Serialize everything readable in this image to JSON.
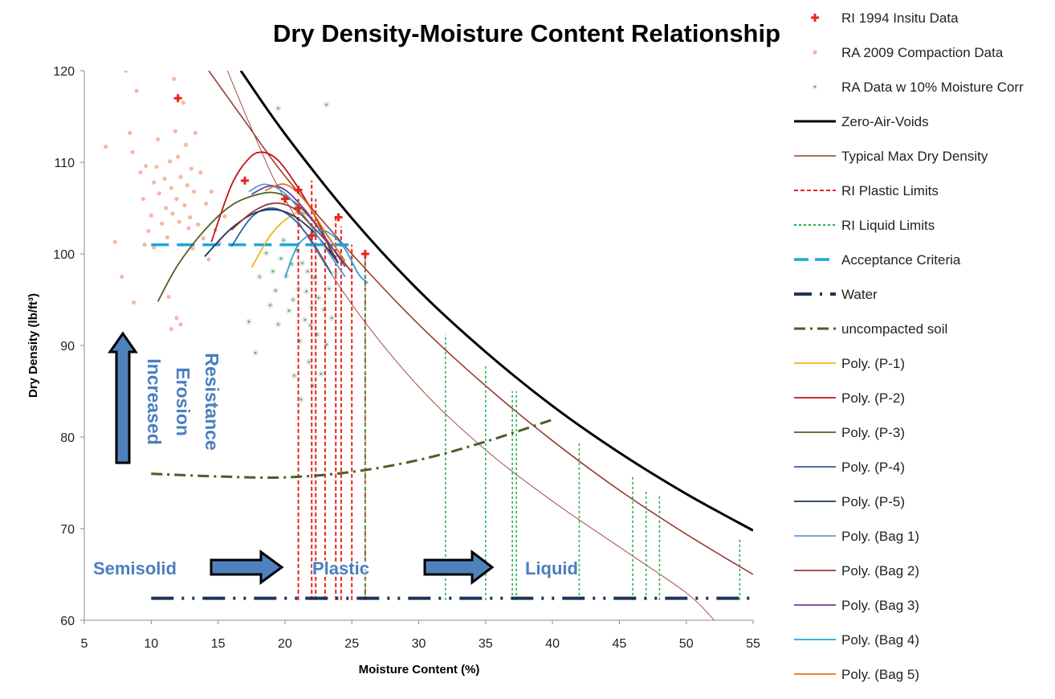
{
  "chart_data": {
    "type": "scatter",
    "title": "Dry Density-Moisture Content Relationship",
    "xlabel": "Moisture Content (%)",
    "ylabel": "Dry Density (lb/ft³)",
    "xlim": [
      5,
      55
    ],
    "ylim": [
      60,
      120
    ],
    "x_ticks": [
      "5",
      "10",
      "15",
      "20",
      "25",
      "30",
      "35",
      "40",
      "45",
      "50",
      "55"
    ],
    "y_ticks": [
      "60",
      "70",
      "80",
      "90",
      "100",
      "110",
      "120"
    ],
    "grid": false,
    "legend_position": "right",
    "annotations": {
      "erosion": [
        "Increased",
        "Erosion",
        "Resistance"
      ],
      "semisolid": "Semisolid",
      "plastic": "Plastic",
      "liquid": "Liquid"
    },
    "colors": {
      "insitu": "#e8231c",
      "compaction": "#f4b9a0",
      "moisture_corr": "#5f9c7a",
      "zav": "#000000",
      "typical": "#9a3b32",
      "plastic_limits": "#e8231c",
      "liquid_limits": "#22b24c",
      "acceptance": "#1ba6e0",
      "water": "#1c3557",
      "uncompacted": "#4c5e2a",
      "arrow_fill": "#4f81bd",
      "annotation_text": "#4a7ec0"
    },
    "series": [
      {
        "name": "RI 1994 Insitu Data",
        "kind": "scatter",
        "marker": "plus",
        "color": "#e8231c",
        "points": [
          [
            12,
            117
          ],
          [
            17,
            108
          ],
          [
            20,
            106
          ],
          [
            21,
            107
          ],
          [
            21,
            105
          ],
          [
            22,
            102
          ],
          [
            24,
            104
          ],
          [
            26,
            100
          ]
        ]
      },
      {
        "name": "RA 2009 Compaction Data",
        "kind": "scatter",
        "marker": "dot",
        "color": "#f4b9a0",
        "points": [
          [
            6.6,
            111.7
          ],
          [
            7.3,
            101.3
          ],
          [
            7.8,
            97.5
          ],
          [
            8.1,
            120.0
          ],
          [
            8.4,
            113.2
          ],
          [
            8.6,
            111.1
          ],
          [
            8.7,
            94.7
          ],
          [
            8.9,
            117.8
          ],
          [
            9.2,
            108.9
          ],
          [
            9.4,
            106.0
          ],
          [
            9.6,
            109.6
          ],
          [
            9.8,
            102.5
          ],
          [
            10.0,
            104.2
          ],
          [
            10.2,
            107.8
          ],
          [
            10.4,
            109.5
          ],
          [
            10.5,
            112.5
          ],
          [
            10.6,
            106.6
          ],
          [
            10.8,
            103.3
          ],
          [
            11.0,
            108.2
          ],
          [
            11.1,
            105.0
          ],
          [
            11.2,
            101.8
          ],
          [
            11.4,
            110.1
          ],
          [
            11.5,
            107.2
          ],
          [
            11.6,
            104.4
          ],
          [
            11.7,
            119.1
          ],
          [
            11.8,
            113.4
          ],
          [
            11.9,
            106.0
          ],
          [
            12.0,
            110.6
          ],
          [
            12.1,
            103.5
          ],
          [
            12.2,
            108.4
          ],
          [
            12.3,
            101.0
          ],
          [
            12.4,
            116.5
          ],
          [
            12.5,
            105.3
          ],
          [
            12.6,
            111.9
          ],
          [
            12.7,
            107.5
          ],
          [
            12.8,
            102.8
          ],
          [
            12.9,
            104.0
          ],
          [
            13.0,
            109.3
          ],
          [
            13.1,
            100.6
          ],
          [
            13.2,
            106.8
          ],
          [
            13.3,
            113.2
          ],
          [
            13.5,
            103.2
          ],
          [
            13.7,
            108.9
          ],
          [
            13.9,
            101.7
          ],
          [
            14.1,
            105.5
          ],
          [
            14.3,
            99.4
          ],
          [
            14.5,
            106.8
          ],
          [
            14.8,
            102.6
          ],
          [
            15.1,
            101.2
          ],
          [
            15.5,
            104.1
          ],
          [
            11.5,
            91.8
          ],
          [
            11.9,
            93.0
          ],
          [
            12.2,
            92.3
          ],
          [
            11.3,
            95.3
          ],
          [
            9.5,
            101.0
          ],
          [
            10.2,
            100.7
          ]
        ]
      },
      {
        "name": "RA Data w 10% Moisture Corr",
        "kind": "scatter",
        "marker": "ring-dot",
        "color": "#5f9c7a",
        "points": [
          [
            17.3,
            92.6
          ],
          [
            17.8,
            89.2
          ],
          [
            18.1,
            97.5
          ],
          [
            18.6,
            100.1
          ],
          [
            18.9,
            94.4
          ],
          [
            19.1,
            98.1
          ],
          [
            19.3,
            96.0
          ],
          [
            19.5,
            92.3
          ],
          [
            19.7,
            99.5
          ],
          [
            19.9,
            101.5
          ],
          [
            20.1,
            97.6
          ],
          [
            20.3,
            93.8
          ],
          [
            20.5,
            98.9
          ],
          [
            20.6,
            95.0
          ],
          [
            20.7,
            86.7
          ],
          [
            20.9,
            100.4
          ],
          [
            21.0,
            96.2
          ],
          [
            21.1,
            90.5
          ],
          [
            21.2,
            84.1
          ],
          [
            21.3,
            99.0
          ],
          [
            21.5,
            92.8
          ],
          [
            21.6,
            95.9
          ],
          [
            21.7,
            98.1
          ],
          [
            21.8,
            88.2
          ],
          [
            21.9,
            92.2
          ],
          [
            22.0,
            94.2
          ],
          [
            22.1,
            85.6
          ],
          [
            22.2,
            97.4
          ],
          [
            22.4,
            91.2
          ],
          [
            22.5,
            95.2
          ],
          [
            22.7,
            86.9
          ],
          [
            22.9,
            93.9
          ],
          [
            23.1,
            90.1
          ],
          [
            23.3,
            96.2
          ],
          [
            23.5,
            93.0
          ],
          [
            23.8,
            97.9
          ],
          [
            19.5,
            115.9
          ],
          [
            23.1,
            116.3
          ]
        ]
      },
      {
        "name": "Zero-Air-Voids",
        "kind": "curve",
        "color": "#000000",
        "stroke_width": 3,
        "dash": "",
        "points": [
          [
            16.7,
            120.0
          ],
          [
            20,
            113.1
          ],
          [
            25,
            103.9
          ],
          [
            30,
            96.0
          ],
          [
            35,
            89.3
          ],
          [
            40,
            83.4
          ],
          [
            45,
            78.3
          ],
          [
            50,
            73.8
          ],
          [
            55,
            69.8
          ]
        ]
      },
      {
        "name": "Typical Max Dry Density",
        "kind": "curve",
        "color": "#9a3b32",
        "stroke_width": 1.6,
        "dash": "",
        "points": [
          [
            14.3,
            120.0
          ],
          [
            17,
            114.5
          ],
          [
            20,
            108.5
          ],
          [
            25,
            100.0
          ],
          [
            30,
            92.3
          ],
          [
            35,
            85.6
          ],
          [
            40,
            79.6
          ],
          [
            45,
            74.2
          ],
          [
            50,
            69.4
          ],
          [
            55,
            65.0
          ]
        ]
      },
      {
        "name": "RI Plastic Limits",
        "kind": "vlines",
        "color": "#e8231c",
        "dash": "5,3",
        "stroke_width": 2,
        "points": [
          [
            21,
            62.2
          ],
          [
            21,
            106.0
          ]
        ],
        "lines": [
          [
            21,
            62.2,
            106.0
          ],
          [
            22,
            62.2,
            108.0
          ],
          [
            22.3,
            62.2,
            106.0
          ],
          [
            23,
            62.2,
            102.0
          ],
          [
            23.8,
            62.2,
            104.0
          ],
          [
            24.2,
            62.2,
            103.0
          ],
          [
            25,
            62.2,
            101.0
          ],
          [
            26,
            62.2,
            100.0
          ]
        ]
      },
      {
        "name": "RI Liquid Limits",
        "kind": "vlines",
        "color": "#22b24c",
        "dash": "3,3",
        "stroke_width": 1.6,
        "points": [
          [
            26,
            62.2
          ],
          [
            26,
            100.0
          ]
        ],
        "lines": [
          [
            26,
            62.2,
            100.0
          ],
          [
            32,
            62.2,
            91.2
          ],
          [
            35,
            62.2,
            87.8
          ],
          [
            37,
            62.2,
            85.0
          ],
          [
            37.3,
            62.2,
            85.0
          ],
          [
            42,
            62.2,
            79.5
          ],
          [
            46,
            62.2,
            75.8
          ],
          [
            47,
            62.2,
            74.3
          ],
          [
            48,
            62.2,
            73.8
          ],
          [
            54,
            62.2,
            69.0
          ]
        ]
      },
      {
        "name": "Acceptance Criteria",
        "kind": "curve",
        "color": "#1ba6e0",
        "stroke_width": 3.5,
        "dash": "22,10",
        "points": [
          [
            10,
            101
          ],
          [
            25,
            101
          ]
        ]
      },
      {
        "name": "Water",
        "kind": "curve",
        "color": "#1c3557",
        "stroke_width": 4,
        "dash": "28,10,3,10,3,10",
        "points": [
          [
            10,
            62.4
          ],
          [
            55,
            62.4
          ]
        ]
      },
      {
        "name": "uncompacted soil",
        "kind": "curve",
        "color": "#4c5e2a",
        "stroke_width": 3,
        "dash": "14,6,3,6",
        "points": [
          [
            10,
            76.0
          ],
          [
            15,
            75.7
          ],
          [
            20,
            75.6
          ],
          [
            25,
            76.2
          ],
          [
            30,
            77.5
          ],
          [
            35,
            79.5
          ],
          [
            40,
            81.9
          ]
        ]
      },
      {
        "name": "Poly. (P-1)",
        "kind": "curve",
        "color": "#f2b21b",
        "stroke_width": 1.8,
        "dash": "",
        "points": [
          [
            17.5,
            98.5
          ],
          [
            19,
            102.2
          ],
          [
            20.5,
            104.2
          ],
          [
            21.5,
            104.4
          ],
          [
            23,
            102.3
          ],
          [
            24.5,
            99.2
          ]
        ]
      },
      {
        "name": "Poly. (P-2)",
        "kind": "curve",
        "color": "#c0151a",
        "stroke_width": 1.8,
        "dash": "",
        "points": [
          [
            14.5,
            101.3
          ],
          [
            16,
            107.5
          ],
          [
            17.3,
            110.4
          ],
          [
            18.3,
            111.1
          ],
          [
            19.5,
            110.2
          ],
          [
            21,
            107.2
          ],
          [
            22.5,
            103.4
          ],
          [
            23.5,
            100.0
          ]
        ]
      },
      {
        "name": "Poly. (P-3)",
        "kind": "curve",
        "color": "#545e28",
        "stroke_width": 1.8,
        "dash": "",
        "points": [
          [
            10.5,
            94.8
          ],
          [
            12,
            98.8
          ],
          [
            14,
            102.6
          ],
          [
            16,
            105.3
          ],
          [
            18,
            106.5
          ],
          [
            19.5,
            106.6
          ],
          [
            21,
            105.3
          ],
          [
            22.5,
            102.8
          ],
          [
            24,
            99.0
          ]
        ]
      },
      {
        "name": "Poly. (P-4)",
        "kind": "curve",
        "color": "#2f5e9e",
        "stroke_width": 1.8,
        "dash": "",
        "points": [
          [
            16,
            100.8
          ],
          [
            17.5,
            104.0
          ],
          [
            19,
            105.0
          ],
          [
            20.5,
            104.0
          ],
          [
            22,
            101.4
          ],
          [
            23.5,
            97.8
          ]
        ]
      },
      {
        "name": "Poly. (P-5)",
        "kind": "curve",
        "color": "#1c3557",
        "stroke_width": 1.8,
        "dash": "",
        "points": [
          [
            14,
            99.7
          ],
          [
            16,
            102.8
          ],
          [
            18,
            104.6
          ],
          [
            20,
            104.6
          ],
          [
            22,
            102.6
          ],
          [
            24,
            99.0
          ]
        ]
      },
      {
        "name": "Poly. (Bag 1)",
        "kind": "curve",
        "color": "#5b9bd5",
        "stroke_width": 1.8,
        "dash": "",
        "points": [
          [
            17.3,
            106.8
          ],
          [
            18.5,
            107.6
          ],
          [
            20,
            106.6
          ],
          [
            21.5,
            104.0
          ],
          [
            23,
            100.7
          ],
          [
            24.5,
            97.5
          ]
        ]
      },
      {
        "name": "Poly. (Bag 2)",
        "kind": "curve",
        "color": "#9a3b32",
        "stroke_width": 1.8,
        "dash": "",
        "points": [
          [
            16,
            102.6
          ],
          [
            17.5,
            104.5
          ],
          [
            19,
            105.5
          ],
          [
            20.5,
            105.1
          ],
          [
            22,
            103.1
          ],
          [
            23.5,
            100.7
          ],
          [
            25,
            98.0
          ]
        ]
      },
      {
        "name": "Poly. (Bag 3)",
        "kind": "curve",
        "color": "#6b3fa0",
        "stroke_width": 1.8,
        "dash": "",
        "points": [
          [
            17.5,
            106.5
          ],
          [
            18.8,
            107.4
          ],
          [
            20,
            107.0
          ],
          [
            21.5,
            104.8
          ],
          [
            23,
            101.8
          ],
          [
            24.5,
            98.6
          ]
        ]
      },
      {
        "name": "Poly. (Bag 4)",
        "kind": "curve",
        "color": "#1ba6e0",
        "stroke_width": 1.8,
        "dash": "",
        "points": [
          [
            20,
            97.4
          ],
          [
            21,
            101.0
          ],
          [
            22.5,
            102.5
          ],
          [
            23.5,
            102.1
          ],
          [
            24.5,
            100.5
          ],
          [
            25.5,
            97.8
          ],
          [
            26.2,
            96.8
          ]
        ]
      },
      {
        "name": "Poly. (Bag 5)",
        "kind": "curve",
        "color": "#e2741f",
        "stroke_width": 1.8,
        "dash": "",
        "points": [
          [
            18.5,
            106.9
          ],
          [
            20,
            107.6
          ],
          [
            21.5,
            105.8
          ],
          [
            23,
            102.4
          ],
          [
            24.5,
            99.2
          ]
        ]
      }
    ],
    "extra_lines": [
      {
        "color": "#9a3b32",
        "stroke_width": 0.9,
        "points": [
          [
            15.7,
            120.0
          ],
          [
            18,
            112.0
          ],
          [
            20,
            106.0
          ],
          [
            25,
            94.5
          ],
          [
            30,
            85.5
          ],
          [
            35,
            78.6
          ],
          [
            40,
            73.0
          ],
          [
            45,
            68.0
          ],
          [
            50,
            63.0
          ],
          [
            52.1,
            60.0
          ]
        ]
      }
    ]
  }
}
